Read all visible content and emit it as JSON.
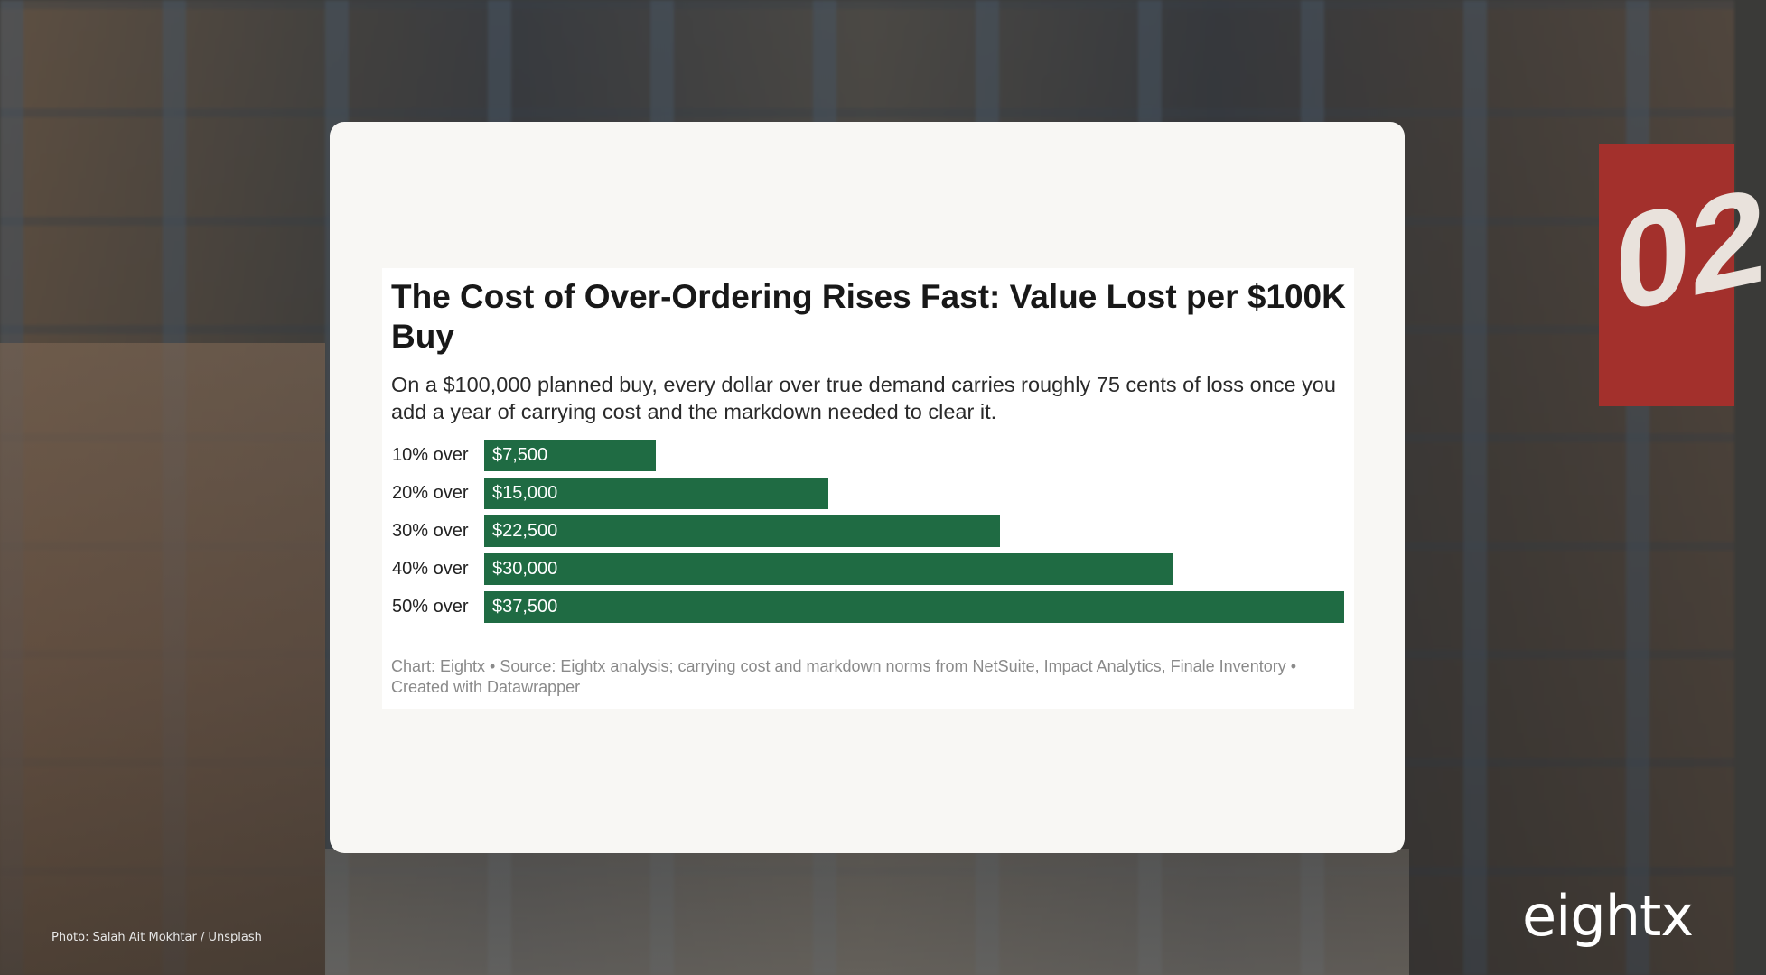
{
  "page": {
    "photo_credit": "Photo: Salah Ait Mokhtar / Unsplash",
    "logo_text": "eightx",
    "background_sign_text": "02"
  },
  "chart": {
    "title": "The Cost of Over-Ordering Rises Fast: Value Lost per $100K Buy",
    "subtitle": "On a $100,000 planned buy, every dollar over true demand carries roughly 75 cents of loss once you add a year of carrying cost and the markdown needed to clear it.",
    "footer": "Chart: Eightx • Source: Eightx analysis; carrying cost and markdown norms from NetSuite, Impact Analytics, Finale Inventory • Created with Datawrapper"
  },
  "colors": {
    "bar": "#1f6b43",
    "card": "#f8f7f4"
  },
  "chart_data": {
    "type": "bar",
    "orientation": "horizontal",
    "title": "The Cost of Over-Ordering Rises Fast: Value Lost per $100K Buy",
    "subtitle": "On a $100,000 planned buy, every dollar over true demand carries roughly 75 cents of loss once you add a year of carrying cost and the markdown needed to clear it.",
    "categories": [
      "10% over",
      "20% over",
      "30% over",
      "40% over",
      "50% over"
    ],
    "values": [
      7500,
      15000,
      22500,
      30000,
      37500
    ],
    "value_labels": [
      "$7,500",
      "$15,000",
      "$22,500",
      "$30,000",
      "$37,500"
    ],
    "xlim": [
      0,
      37500
    ],
    "grid": false,
    "legend": "none"
  }
}
